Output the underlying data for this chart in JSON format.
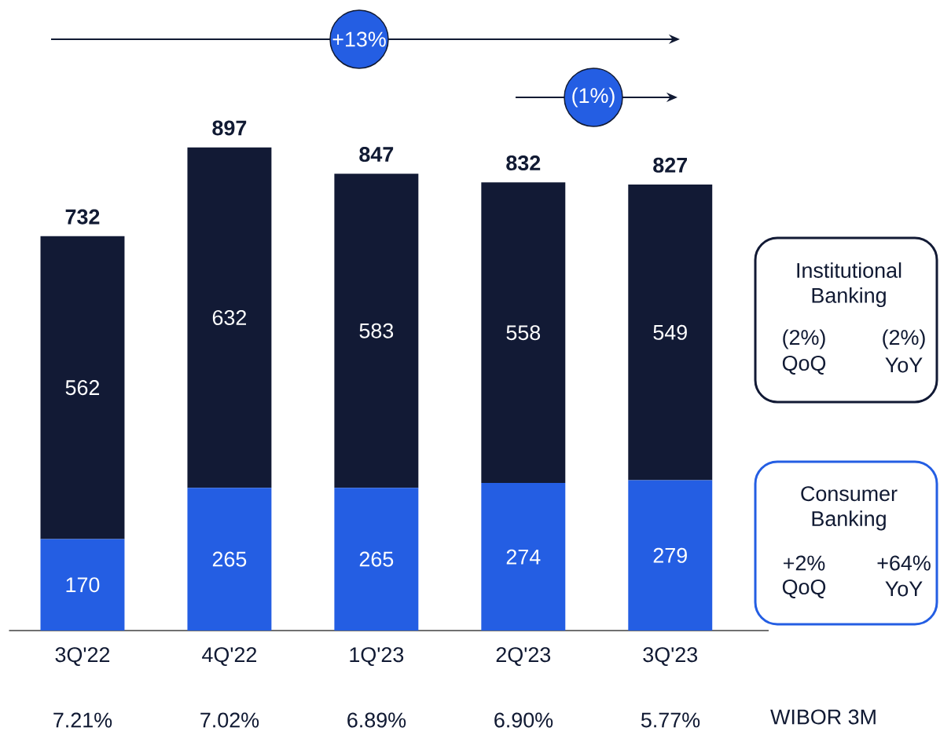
{
  "chart_data": {
    "type": "bar",
    "stacked": true,
    "data_labels": true,
    "legend": "right",
    "categories": [
      "3Q'22",
      "4Q'22",
      "1Q'23",
      "2Q'23",
      "3Q'23"
    ],
    "series": [
      {
        "name": "Consumer Banking",
        "color": "#245ee3",
        "values": [
          170,
          265,
          265,
          274,
          279
        ]
      },
      {
        "name": "Institutional Banking",
        "color": "#121a35",
        "values": [
          562,
          632,
          583,
          558,
          549
        ]
      }
    ],
    "totals": [
      "732",
      "897",
      "847",
      "832",
      "827"
    ],
    "annotations": [
      "+13%",
      "(1%)",
      "(2%)",
      "QoQ",
      "(2%)",
      "YoY",
      "+2%",
      "QoQ",
      "+64%",
      "YoY",
      "WIBOR 3M",
      "7.21%",
      "7.02%",
      "6.89%",
      "6.90%",
      "5.77%"
    ]
  }
}
